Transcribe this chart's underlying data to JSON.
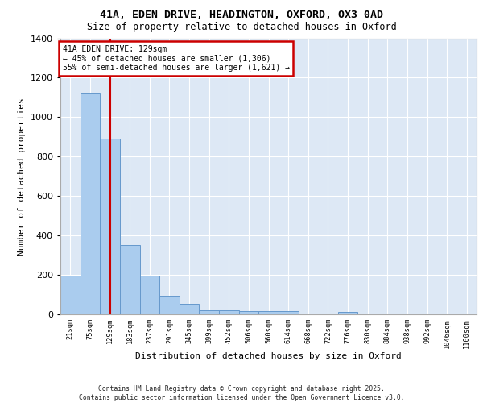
{
  "title_line1": "41A, EDEN DRIVE, HEADINGTON, OXFORD, OX3 0AD",
  "title_line2": "Size of property relative to detached houses in Oxford",
  "xlabel": "Distribution of detached houses by size in Oxford",
  "ylabel": "Number of detached properties",
  "categories": [
    "21sqm",
    "75sqm",
    "129sqm",
    "183sqm",
    "237sqm",
    "291sqm",
    "345sqm",
    "399sqm",
    "452sqm",
    "506sqm",
    "560sqm",
    "614sqm",
    "668sqm",
    "722sqm",
    "776sqm",
    "830sqm",
    "884sqm",
    "938sqm",
    "992sqm",
    "1046sqm",
    "1100sqm"
  ],
  "values": [
    195,
    1120,
    890,
    350,
    195,
    95,
    55,
    22,
    22,
    15,
    15,
    15,
    0,
    0,
    12,
    0,
    0,
    0,
    0,
    0,
    0
  ],
  "bar_color": "#aaccee",
  "bar_edge_color": "#6699cc",
  "vline_x": 2,
  "vline_color": "#cc0000",
  "annotation_text": "41A EDEN DRIVE: 129sqm\n← 45% of detached houses are smaller (1,306)\n55% of semi-detached houses are larger (1,621) →",
  "annotation_box_color": "#cc0000",
  "background_color": "#dde8f5",
  "grid_color": "#ffffff",
  "ylim": [
    0,
    1400
  ],
  "yticks": [
    0,
    200,
    400,
    600,
    800,
    1000,
    1200,
    1400
  ],
  "footer_line1": "Contains HM Land Registry data © Crown copyright and database right 2025.",
  "footer_line2": "Contains public sector information licensed under the Open Government Licence v3.0."
}
